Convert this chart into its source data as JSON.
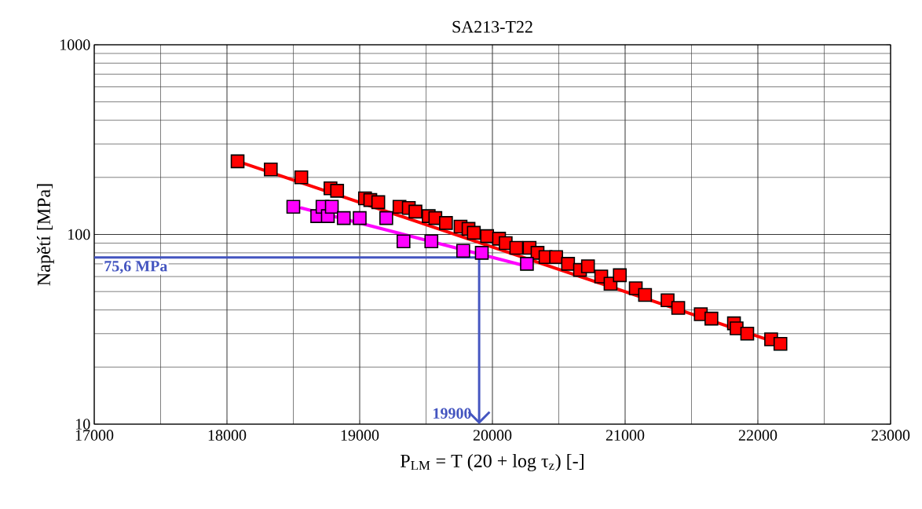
{
  "chart_data": {
    "type": "scatter",
    "title": "SA213-T22",
    "xlabel": "P$_{LM}$ = T (20 + log τ$_{z}$) [-]",
    "ylabel": "Napětí  [MPa]",
    "log": "y",
    "grid": true,
    "marker": "square",
    "xlim": [
      17000,
      23000
    ],
    "ylim": [
      10,
      1000
    ],
    "xticks": [
      17000,
      18000,
      19000,
      20000,
      21000,
      22000,
      23000
    ],
    "yticks": [
      10,
      100,
      1000
    ],
    "series": [
      {
        "type": "line",
        "marker": "none",
        "color": "#ff0000",
        "x": [
          18080,
          22170
        ],
        "values": [
          243,
          26.5
        ]
      },
      {
        "type": "line",
        "marker": "none",
        "color": "#ff00ff",
        "x": [
          18560,
          20260
        ],
        "values": [
          138,
          68
        ]
      },
      {
        "color": "#ff0000",
        "x": [
          18080,
          18330,
          18560,
          18780,
          18830,
          19040,
          19080,
          19140,
          19300,
          19370,
          19420,
          19520,
          19570,
          19650,
          19760,
          19820,
          19860,
          19960,
          20050,
          20100,
          20180,
          20280,
          20340,
          20400,
          20480,
          20570,
          20660,
          20720,
          20820,
          20890,
          20960,
          21080,
          21150,
          21320,
          21400,
          21570,
          21650,
          21820,
          21840,
          21920,
          22100,
          22170
        ],
        "values": [
          243,
          220,
          200,
          175,
          170,
          155,
          152,
          148,
          140,
          138,
          132,
          125,
          122,
          115,
          110,
          107,
          102,
          98,
          95,
          90,
          85,
          85,
          80,
          76,
          76,
          70,
          65,
          68,
          60,
          55,
          61,
          52,
          48,
          45,
          41,
          38,
          36,
          34,
          32,
          30,
          28,
          26.5
        ]
      },
      {
        "color": "#ff00ff",
        "x": [
          18500,
          18680,
          18720,
          18760,
          18790,
          18880,
          19000,
          19200,
          19330,
          19540,
          19780,
          19920,
          20260
        ],
        "values": [
          140,
          125,
          140,
          125,
          140,
          122,
          122,
          122,
          92,
          92,
          82,
          80,
          70
        ]
      }
    ],
    "ref_lines": [
      {
        "axis": "y",
        "value": 75.6,
        "label": "75,6 MPa",
        "color": "#4455c0"
      },
      {
        "axis": "x",
        "value": 19900,
        "label": "19900",
        "color": "#4455c0"
      }
    ]
  }
}
